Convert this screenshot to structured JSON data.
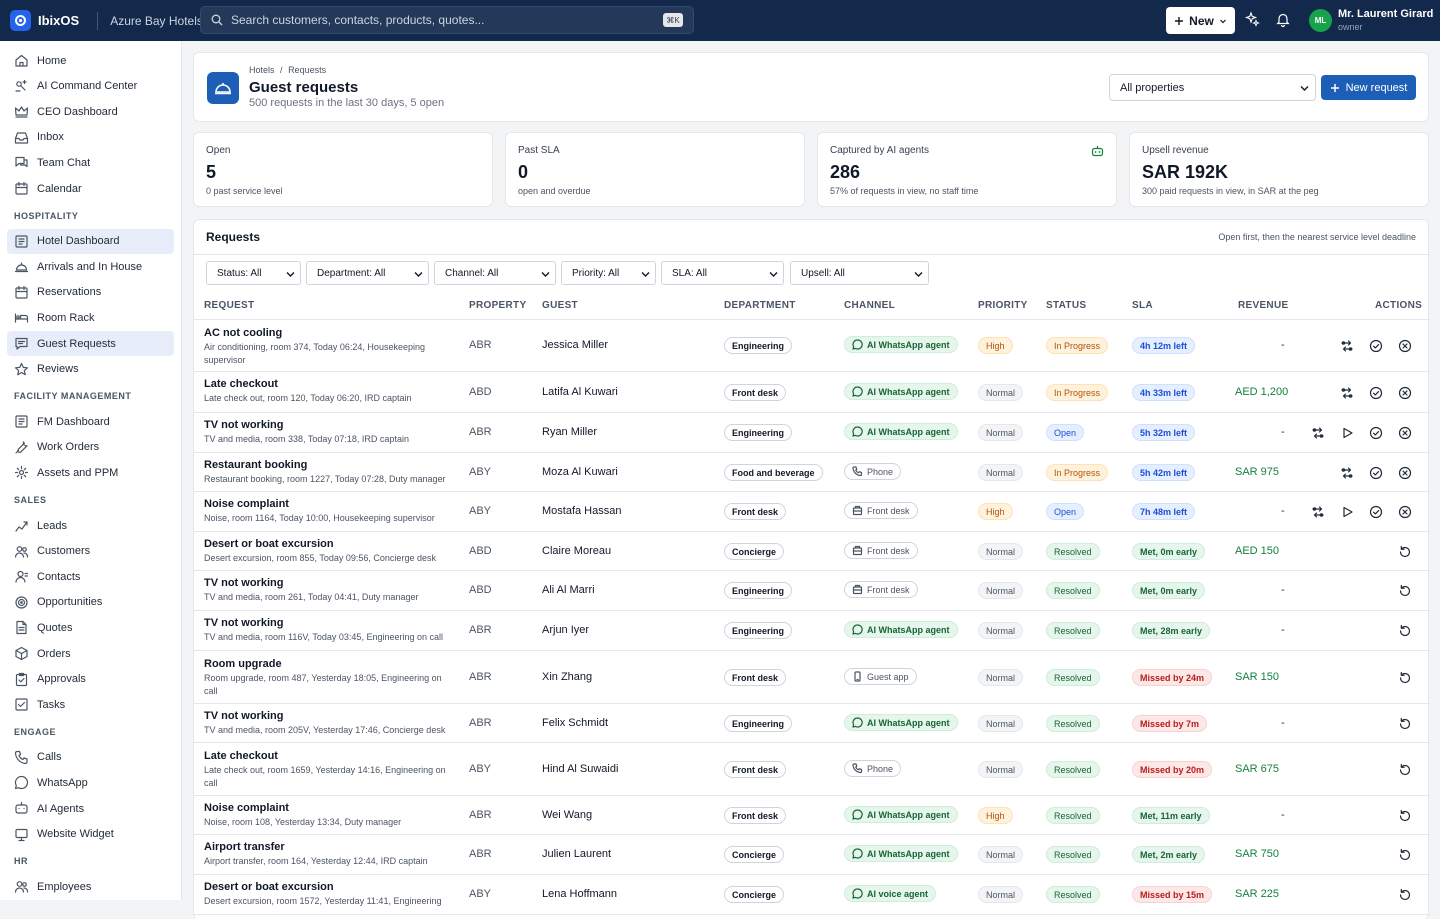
{
  "app": {
    "name": "IbixOS",
    "org": "Azure Bay Hotels"
  },
  "search": {
    "placeholder": "Search customers, contacts, products, quotes...",
    "shortcut": "⌘K"
  },
  "topbar": {
    "new_label": "New",
    "user_initials": "ML",
    "user_name": "Mr. Laurent Girard",
    "user_role": "owner"
  },
  "sidebar": {
    "main": [
      {
        "label": "Home",
        "icon": "home-icon"
      },
      {
        "label": "AI Command Center",
        "icon": "ai-icon"
      },
      {
        "label": "CEO Dashboard",
        "icon": "crown-icon"
      },
      {
        "label": "Inbox",
        "icon": "inbox-icon"
      },
      {
        "label": "Team Chat",
        "icon": "chat-icon"
      },
      {
        "label": "Calendar",
        "icon": "calendar-icon"
      }
    ],
    "sections": [
      {
        "title": "HOSPITALITY",
        "items": [
          {
            "label": "Hotel Dashboard",
            "icon": "dashboard-icon",
            "active": true
          },
          {
            "label": "Arrivals and In House",
            "icon": "bell-hotel-icon"
          },
          {
            "label": "Reservations",
            "icon": "calendar-icon"
          },
          {
            "label": "Room Rack",
            "icon": "bed-icon"
          },
          {
            "label": "Guest Requests",
            "icon": "message-icon",
            "active": true
          },
          {
            "label": "Reviews",
            "icon": "star-icon"
          }
        ]
      },
      {
        "title": "FACILITY MANAGEMENT",
        "items": [
          {
            "label": "FM Dashboard",
            "icon": "dashboard-icon"
          },
          {
            "label": "Work Orders",
            "icon": "wrench-icon"
          },
          {
            "label": "Assets and PPM",
            "icon": "gear-icon"
          }
        ]
      },
      {
        "title": "SALES",
        "items": [
          {
            "label": "Leads",
            "icon": "leads-icon"
          },
          {
            "label": "Customers",
            "icon": "users-icon"
          },
          {
            "label": "Contacts",
            "icon": "contact-icon"
          },
          {
            "label": "Opportunities",
            "icon": "target-icon"
          },
          {
            "label": "Quotes",
            "icon": "document-icon"
          },
          {
            "label": "Orders",
            "icon": "box-icon"
          },
          {
            "label": "Approvals",
            "icon": "clipboard-icon"
          },
          {
            "label": "Tasks",
            "icon": "check-square-icon"
          }
        ]
      },
      {
        "title": "ENGAGE",
        "items": [
          {
            "label": "Calls",
            "icon": "phone-icon"
          },
          {
            "label": "WhatsApp",
            "icon": "whatsapp-icon"
          },
          {
            "label": "AI Agents",
            "icon": "robot-icon"
          },
          {
            "label": "Website Widget",
            "icon": "widget-icon"
          }
        ]
      },
      {
        "title": "HR",
        "items": [
          {
            "label": "Employees",
            "icon": "users-icon"
          }
        ]
      }
    ]
  },
  "header": {
    "breadcrumb": [
      "Hotels",
      "Requests"
    ],
    "breadcrumb_sep": "/",
    "title": "Guest requests",
    "subtitle": "500 requests in the last 30 days, 5 open",
    "property_select": "All properties",
    "new_request_label": "New request"
  },
  "kpis": [
    {
      "label": "Open",
      "value": "5",
      "sub": "0 past service level"
    },
    {
      "label": "Past SLA",
      "value": "0",
      "sub": "open and overdue"
    },
    {
      "label": "Captured by AI agents",
      "value": "286",
      "sub": "57% of requests in view, no staff time",
      "icon": "robot-icon"
    },
    {
      "label": "Upsell revenue",
      "value": "SAR 192K",
      "sub": "300 paid requests in view, in SAR at the peg"
    }
  ],
  "requests": {
    "title": "Requests",
    "hint": "Open first, then the nearest service level deadline",
    "filters": [
      "Status: All",
      "Department: All",
      "Channel: All",
      "Priority: All",
      "SLA: All",
      "Upsell: All"
    ],
    "columns": [
      "REQUEST",
      "PROPERTY",
      "GUEST",
      "DEPARTMENT",
      "CHANNEL",
      "PRIORITY",
      "STATUS",
      "SLA",
      "REVENUE",
      "ACTIONS"
    ],
    "rows": [
      {
        "title": "AC not cooling",
        "desc": "Air conditioning, room 374, Today 06:24, Housekeeping supervisor",
        "property": "ABR",
        "guest": "Jessica Miller",
        "dept": "Engineering",
        "channel": "AI WhatsApp agent",
        "channel_type": "ai",
        "priority": "High",
        "status": "In Progress",
        "sla": "4h 12m left",
        "sla_type": "left",
        "revenue": "-",
        "actions": [
          "reassign",
          "resolve",
          "cancel"
        ]
      },
      {
        "title": "Late checkout",
        "desc": "Late check out, room 120, Today 06:20, IRD captain",
        "property": "ABD",
        "guest": "Latifa Al Kuwari",
        "dept": "Front desk",
        "channel": "AI WhatsApp agent",
        "channel_type": "ai",
        "priority": "Normal",
        "status": "In Progress",
        "sla": "4h 33m left",
        "sla_type": "left",
        "revenue": "AED 1,200",
        "actions": [
          "reassign",
          "resolve",
          "cancel"
        ]
      },
      {
        "title": "TV not working",
        "desc": "TV and media, room 338, Today 07:18, IRD captain",
        "property": "ABR",
        "guest": "Ryan Miller",
        "dept": "Engineering",
        "channel": "AI WhatsApp agent",
        "channel_type": "ai",
        "priority": "Normal",
        "status": "Open",
        "sla": "5h 32m left",
        "sla_type": "left",
        "revenue": "-",
        "actions": [
          "reassign",
          "start",
          "resolve",
          "cancel"
        ]
      },
      {
        "title": "Restaurant booking",
        "desc": "Restaurant booking, room 1227, Today 07:28, Duty manager",
        "property": "ABY",
        "guest": "Moza Al Kuwari",
        "dept": "Food and beverage",
        "channel": "Phone",
        "channel_type": "phone",
        "priority": "Normal",
        "status": "In Progress",
        "sla": "5h 42m left",
        "sla_type": "left",
        "revenue": "SAR 975",
        "actions": [
          "reassign",
          "resolve",
          "cancel"
        ]
      },
      {
        "title": "Noise complaint",
        "desc": "Noise, room 1164, Today 10:00, Housekeeping supervisor",
        "property": "ABY",
        "guest": "Mostafa Hassan",
        "dept": "Front desk",
        "channel": "Front desk",
        "channel_type": "desk",
        "priority": "High",
        "status": "Open",
        "sla": "7h 48m left",
        "sla_type": "left",
        "revenue": "-",
        "actions": [
          "reassign",
          "start",
          "resolve",
          "cancel"
        ]
      },
      {
        "title": "Desert or boat excursion",
        "desc": "Desert excursion, room 855, Today 09:56, Concierge desk",
        "property": "ABD",
        "guest": "Claire Moreau",
        "dept": "Concierge",
        "channel": "Front desk",
        "channel_type": "desk",
        "priority": "Normal",
        "status": "Resolved",
        "sla": "Met, 0m early",
        "sla_type": "met",
        "revenue": "AED 150",
        "actions": [
          "reopen"
        ]
      },
      {
        "title": "TV not working",
        "desc": "TV and media, room 261, Today 04:41, Duty manager",
        "property": "ABD",
        "guest": "Ali Al Marri",
        "dept": "Engineering",
        "channel": "Front desk",
        "channel_type": "desk",
        "priority": "Normal",
        "status": "Resolved",
        "sla": "Met, 0m early",
        "sla_type": "met",
        "revenue": "-",
        "actions": [
          "reopen"
        ]
      },
      {
        "title": "TV not working",
        "desc": "TV and media, room 116V, Today 03:45, Engineering on call",
        "property": "ABR",
        "guest": "Arjun Iyer",
        "dept": "Engineering",
        "channel": "AI WhatsApp agent",
        "channel_type": "ai",
        "priority": "Normal",
        "status": "Resolved",
        "sla": "Met, 28m early",
        "sla_type": "met",
        "revenue": "-",
        "actions": [
          "reopen"
        ]
      },
      {
        "title": "Room upgrade",
        "desc": "Room upgrade, room 487, Yesterday 18:05, Engineering on call",
        "property": "ABR",
        "guest": "Xin Zhang",
        "dept": "Front desk",
        "channel": "Guest app",
        "channel_type": "app",
        "priority": "Normal",
        "status": "Resolved",
        "sla": "Missed by 24m",
        "sla_type": "miss",
        "revenue": "SAR 150",
        "actions": [
          "reopen"
        ]
      },
      {
        "title": "TV not working",
        "desc": "TV and media, room 205V, Yesterday 17:46, Concierge desk",
        "property": "ABR",
        "guest": "Felix Schmidt",
        "dept": "Engineering",
        "channel": "AI WhatsApp agent",
        "channel_type": "ai",
        "priority": "Normal",
        "status": "Resolved",
        "sla": "Missed by 7m",
        "sla_type": "miss",
        "revenue": "-",
        "actions": [
          "reopen"
        ]
      },
      {
        "title": "Late checkout",
        "desc": "Late check out, room 1659, Yesterday 14:16, Engineering on call",
        "property": "ABY",
        "guest": "Hind Al Suwaidi",
        "dept": "Front desk",
        "channel": "Phone",
        "channel_type": "phone",
        "priority": "Normal",
        "status": "Resolved",
        "sla": "Missed by 20m",
        "sla_type": "miss",
        "revenue": "SAR 675",
        "actions": [
          "reopen"
        ]
      },
      {
        "title": "Noise complaint",
        "desc": "Noise, room 108, Yesterday 13:34, Duty manager",
        "property": "ABR",
        "guest": "Wei Wang",
        "dept": "Front desk",
        "channel": "AI WhatsApp agent",
        "channel_type": "ai",
        "priority": "High",
        "status": "Resolved",
        "sla": "Met, 11m early",
        "sla_type": "met",
        "revenue": "-",
        "actions": [
          "reopen"
        ]
      },
      {
        "title": "Airport transfer",
        "desc": "Airport transfer, room 164, Yesterday 12:44, IRD captain",
        "property": "ABR",
        "guest": "Julien Laurent",
        "dept": "Concierge",
        "channel": "AI WhatsApp agent",
        "channel_type": "ai",
        "priority": "Normal",
        "status": "Resolved",
        "sla": "Met, 2m early",
        "sla_type": "met",
        "revenue": "SAR 750",
        "actions": [
          "reopen"
        ]
      },
      {
        "title": "Desert or boat excursion",
        "desc": "Desert excursion, room 1572, Yesterday 11:41, Engineering",
        "property": "ABY",
        "guest": "Lena Hoffmann",
        "dept": "Concierge",
        "channel": "AI voice agent",
        "channel_type": "ai",
        "priority": "Normal",
        "status": "Resolved",
        "sla": "Missed by 15m",
        "sla_type": "miss",
        "revenue": "SAR 225",
        "actions": [
          "reopen"
        ]
      }
    ]
  },
  "colors": {
    "topbar": "#13294b",
    "accent": "#1d5fb7",
    "success": "#15803d",
    "warning": "#b45309",
    "danger": "#b91c1c"
  }
}
